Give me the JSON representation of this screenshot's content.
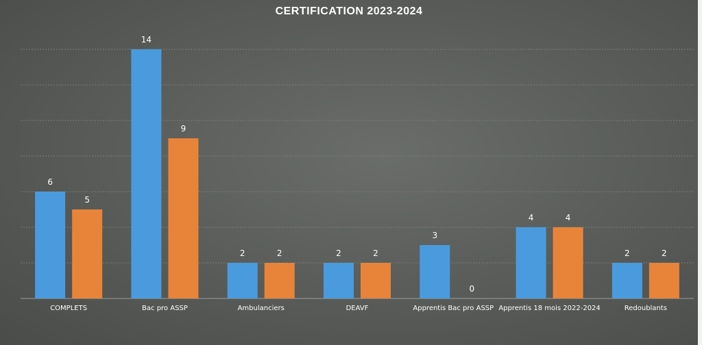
{
  "chart_data": {
    "type": "bar",
    "title": "CERTIFICATION 2023-2024",
    "categories": [
      "COMPLETS",
      "Bac pro ASSP",
      "Ambulanciers",
      "DEAVF",
      "Apprentis Bac pro ASSP",
      "Apprentis 18 mois 2022-2024",
      "Redoublants"
    ],
    "series": [
      {
        "values": [
          6,
          14,
          2,
          2,
          3,
          4,
          2
        ],
        "color": "#4a9bde"
      },
      {
        "values": [
          5,
          9,
          2,
          2,
          0,
          4,
          2
        ],
        "color": "#e8843a"
      }
    ],
    "ylim": [
      0,
      14
    ],
    "grid": true,
    "legend": false,
    "data_labels": true
  }
}
